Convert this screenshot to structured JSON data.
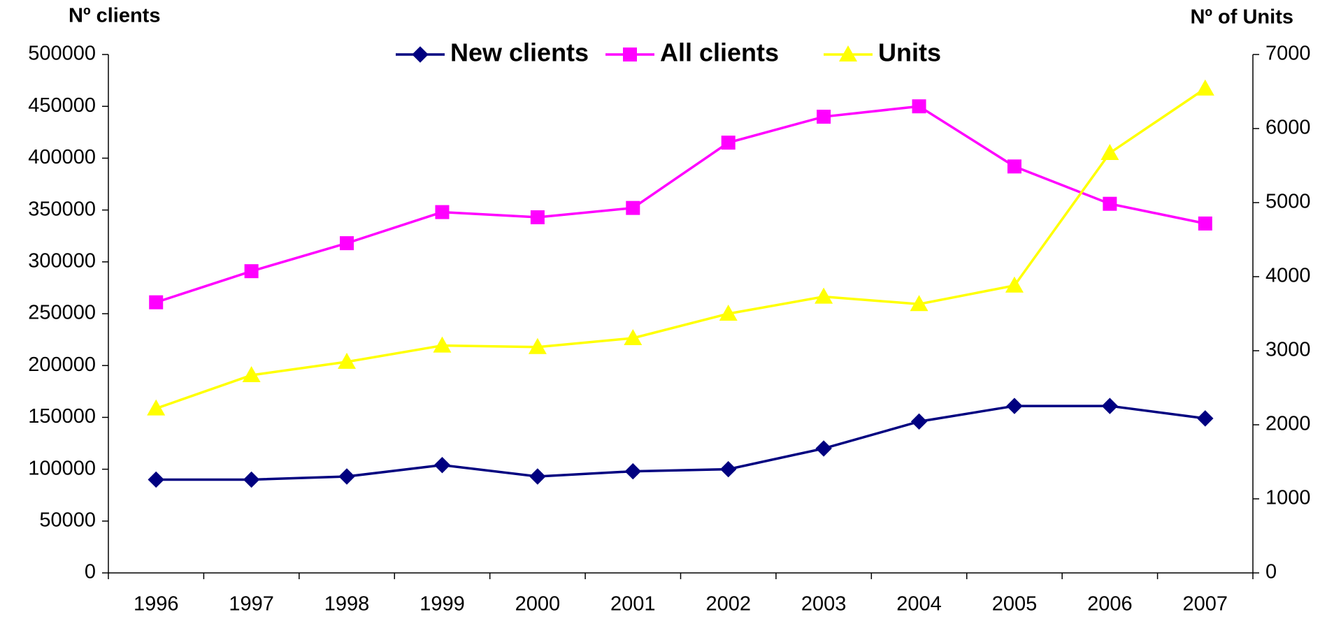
{
  "chart_data": {
    "type": "line",
    "y_label": "Nº clients",
    "y2_label": "Nº of Units",
    "categories": [
      "1996",
      "1997",
      "1998",
      "1999",
      "2000",
      "2001",
      "2002",
      "2003",
      "2004",
      "2005",
      "2006",
      "2007"
    ],
    "series": [
      {
        "name": "New clients",
        "color": "#000080",
        "marker": "diamond",
        "values": [
          90000,
          90000,
          93000,
          104000,
          93000,
          98000,
          100000,
          120000,
          146000,
          161000,
          161000,
          149000
        ]
      },
      {
        "name": "All clients",
        "color": "#ff00ff",
        "marker": "square",
        "values": [
          261000,
          291000,
          318000,
          348000,
          343000,
          352000,
          415000,
          440000,
          450000,
          392000,
          356000,
          337000
        ]
      },
      {
        "name": "Units",
        "color": "#ffff00",
        "marker": "triangle",
        "axis": "y2",
        "values": [
          2220,
          2670,
          2850,
          3070,
          3050,
          3170,
          3500,
          3730,
          3630,
          3880,
          5670,
          6540
        ]
      }
    ],
    "ylim": [
      0,
      500000
    ],
    "yticks": [
      0,
      50000,
      100000,
      150000,
      200000,
      250000,
      300000,
      350000,
      400000,
      450000,
      500000
    ],
    "y2lim": [
      0,
      7000
    ],
    "y2ticks": [
      0,
      1000,
      2000,
      3000,
      4000,
      5000,
      6000,
      7000
    ],
    "grid": false,
    "legend": "top"
  }
}
